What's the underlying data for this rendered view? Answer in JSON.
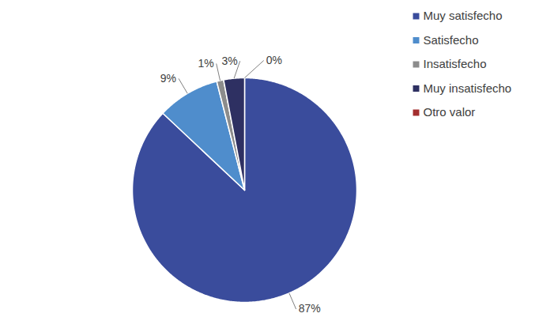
{
  "chart_data": {
    "type": "pie",
    "categories": [
      "Muy satisfecho",
      "Satisfecho",
      "Insatisfecho",
      "Muy insatisfecho",
      "Otro valor"
    ],
    "values": [
      87,
      9,
      1,
      3,
      0
    ],
    "value_labels": [
      "87%",
      "9%",
      "1%",
      "3%",
      "0%"
    ],
    "colors": [
      "#3A4C9C",
      "#4F8DCC",
      "#8C8C8C",
      "#2E3062",
      "#A32E2E"
    ],
    "data_labels": true,
    "legend": "top-right"
  }
}
